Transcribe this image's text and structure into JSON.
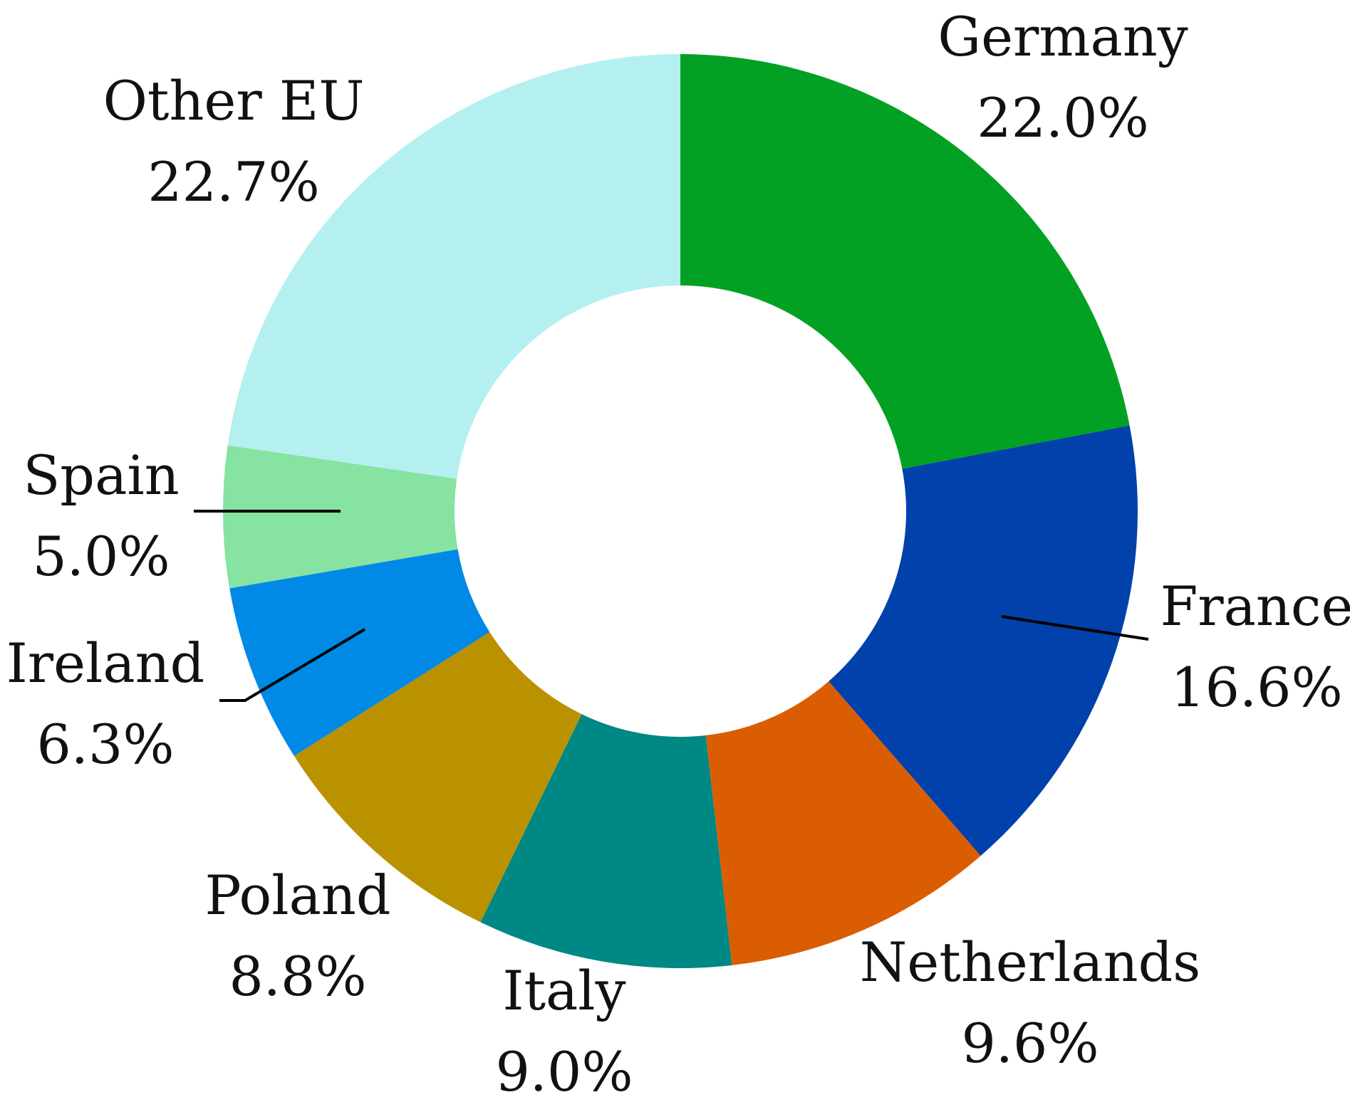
{
  "chart_data": {
    "type": "pie",
    "variant": "donut",
    "title": "",
    "slices": [
      {
        "label": "Germany",
        "value": 22.0,
        "value_label": "22.0%",
        "color": "#02A123"
      },
      {
        "label": "France",
        "value": 16.6,
        "value_label": "16.6%",
        "color": "#0041AB"
      },
      {
        "label": "Netherlands",
        "value": 9.6,
        "value_label": "9.6%",
        "color": "#DA5E01"
      },
      {
        "label": "Italy",
        "value": 9.0,
        "value_label": "9.0%",
        "color": "#008884"
      },
      {
        "label": "Poland",
        "value": 8.8,
        "value_label": "8.8%",
        "color": "#BA9200"
      },
      {
        "label": "Ireland",
        "value": 6.3,
        "value_label": "6.3%",
        "color": "#0089E5"
      },
      {
        "label": "Spain",
        "value": 5.0,
        "value_label": "5.0%",
        "color": "#86E3A1"
      },
      {
        "label": "Other EU",
        "value": 22.7,
        "value_label": "22.7%",
        "color": "#B4F0F0"
      }
    ],
    "start_angle": "12 o'clock",
    "direction": "clockwise",
    "legend": "none",
    "labels": "outside slices with percentage below name"
  }
}
